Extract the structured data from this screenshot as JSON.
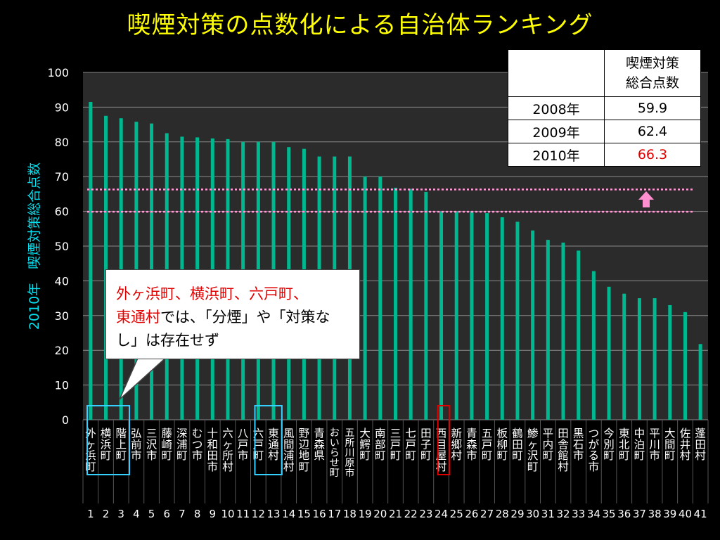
{
  "title": "喫煙対策の点数化による自治体ランキング",
  "chart_data": {
    "type": "bar",
    "ylabel": "2010年　喫煙対策総合点数",
    "ylim": [
      0,
      100
    ],
    "yticks": [
      0,
      10,
      20,
      30,
      40,
      50,
      60,
      70,
      80,
      90,
      100
    ],
    "grid": true,
    "bar_color": "#00b890",
    "categories": [
      "外ヶ浜町",
      "横浜町",
      "階上町",
      "弘前市",
      "三沢市",
      "藤崎町",
      "深浦町",
      "むつ市",
      "十和田市",
      "六ヶ所村",
      "八戸市",
      "六戸町",
      "東通村",
      "風間浦村",
      "野辺地町",
      "青森県",
      "おいらせ町",
      "五所川原市",
      "大鰐町",
      "南部町",
      "三戸町",
      "七戸町",
      "田子町",
      "西目屋村",
      "新郷村",
      "青森市",
      "五戸町",
      "板柳町",
      "鶴田町",
      "鯵ヶ沢町",
      "平内町",
      "田舎館村",
      "黒石市",
      "つがる市",
      "今別町",
      "東北町",
      "中泊町",
      "平川市",
      "大間町",
      "佐井村",
      "蓬田村"
    ],
    "ranks": [
      "1",
      "2",
      "3",
      "4",
      "5",
      "6",
      "7",
      "8",
      "9",
      "10",
      "11",
      "12",
      "13",
      "14",
      "15",
      "16",
      "17",
      "18",
      "19",
      "20",
      "21",
      "22",
      "23",
      "24",
      "25",
      "26",
      "27",
      "28",
      "29",
      "30",
      "31",
      "32",
      "33",
      "34",
      "35",
      "36",
      "37",
      "38",
      "39",
      "40",
      "41"
    ],
    "values": [
      91.5,
      87.5,
      86.8,
      85.8,
      85.3,
      82.5,
      81.5,
      81.3,
      81,
      80.8,
      80,
      80,
      80,
      78.5,
      78,
      75.8,
      75.8,
      75.8,
      70,
      70,
      66.8,
      66.5,
      65.6,
      60,
      60,
      60,
      59.5,
      58.3,
      57,
      54.5,
      51.8,
      51,
      48.7,
      42.8,
      38.3,
      36.3,
      35,
      35,
      33,
      31,
      21.8
    ],
    "reference_lines": [
      {
        "value": 59.9,
        "color": "#ff9ad5"
      },
      {
        "value": 66.3,
        "color": "#ff9ad5"
      }
    ],
    "arrow_color": "#ff8fcf",
    "highlight_boxes": [
      {
        "from": 0,
        "to": 2,
        "color": "#35d0ff"
      },
      {
        "from": 11,
        "to": 12,
        "color": "#35d0ff"
      },
      {
        "from": 23,
        "to": 23,
        "color": "#e00000"
      }
    ]
  },
  "table": {
    "header": [
      "",
      "喫煙対策\n総合点数"
    ],
    "header_line1": "喫煙対策",
    "header_line2": "総合点数",
    "rows": [
      {
        "year": "2008年",
        "score": "59.9"
      },
      {
        "year": "2009年",
        "score": "62.4"
      },
      {
        "year": "2010年",
        "score": "66.3"
      }
    ],
    "highlight_color": "#e00000"
  },
  "callout": {
    "red_text": "外ヶ浜町、横浜町、六戸町、東通村",
    "red_part1": "外ヶ浜町、横浜町、六戸町、",
    "red_part2": "東通村",
    "black_part": "では、「分煙」や「対策なし」は存在せず"
  }
}
